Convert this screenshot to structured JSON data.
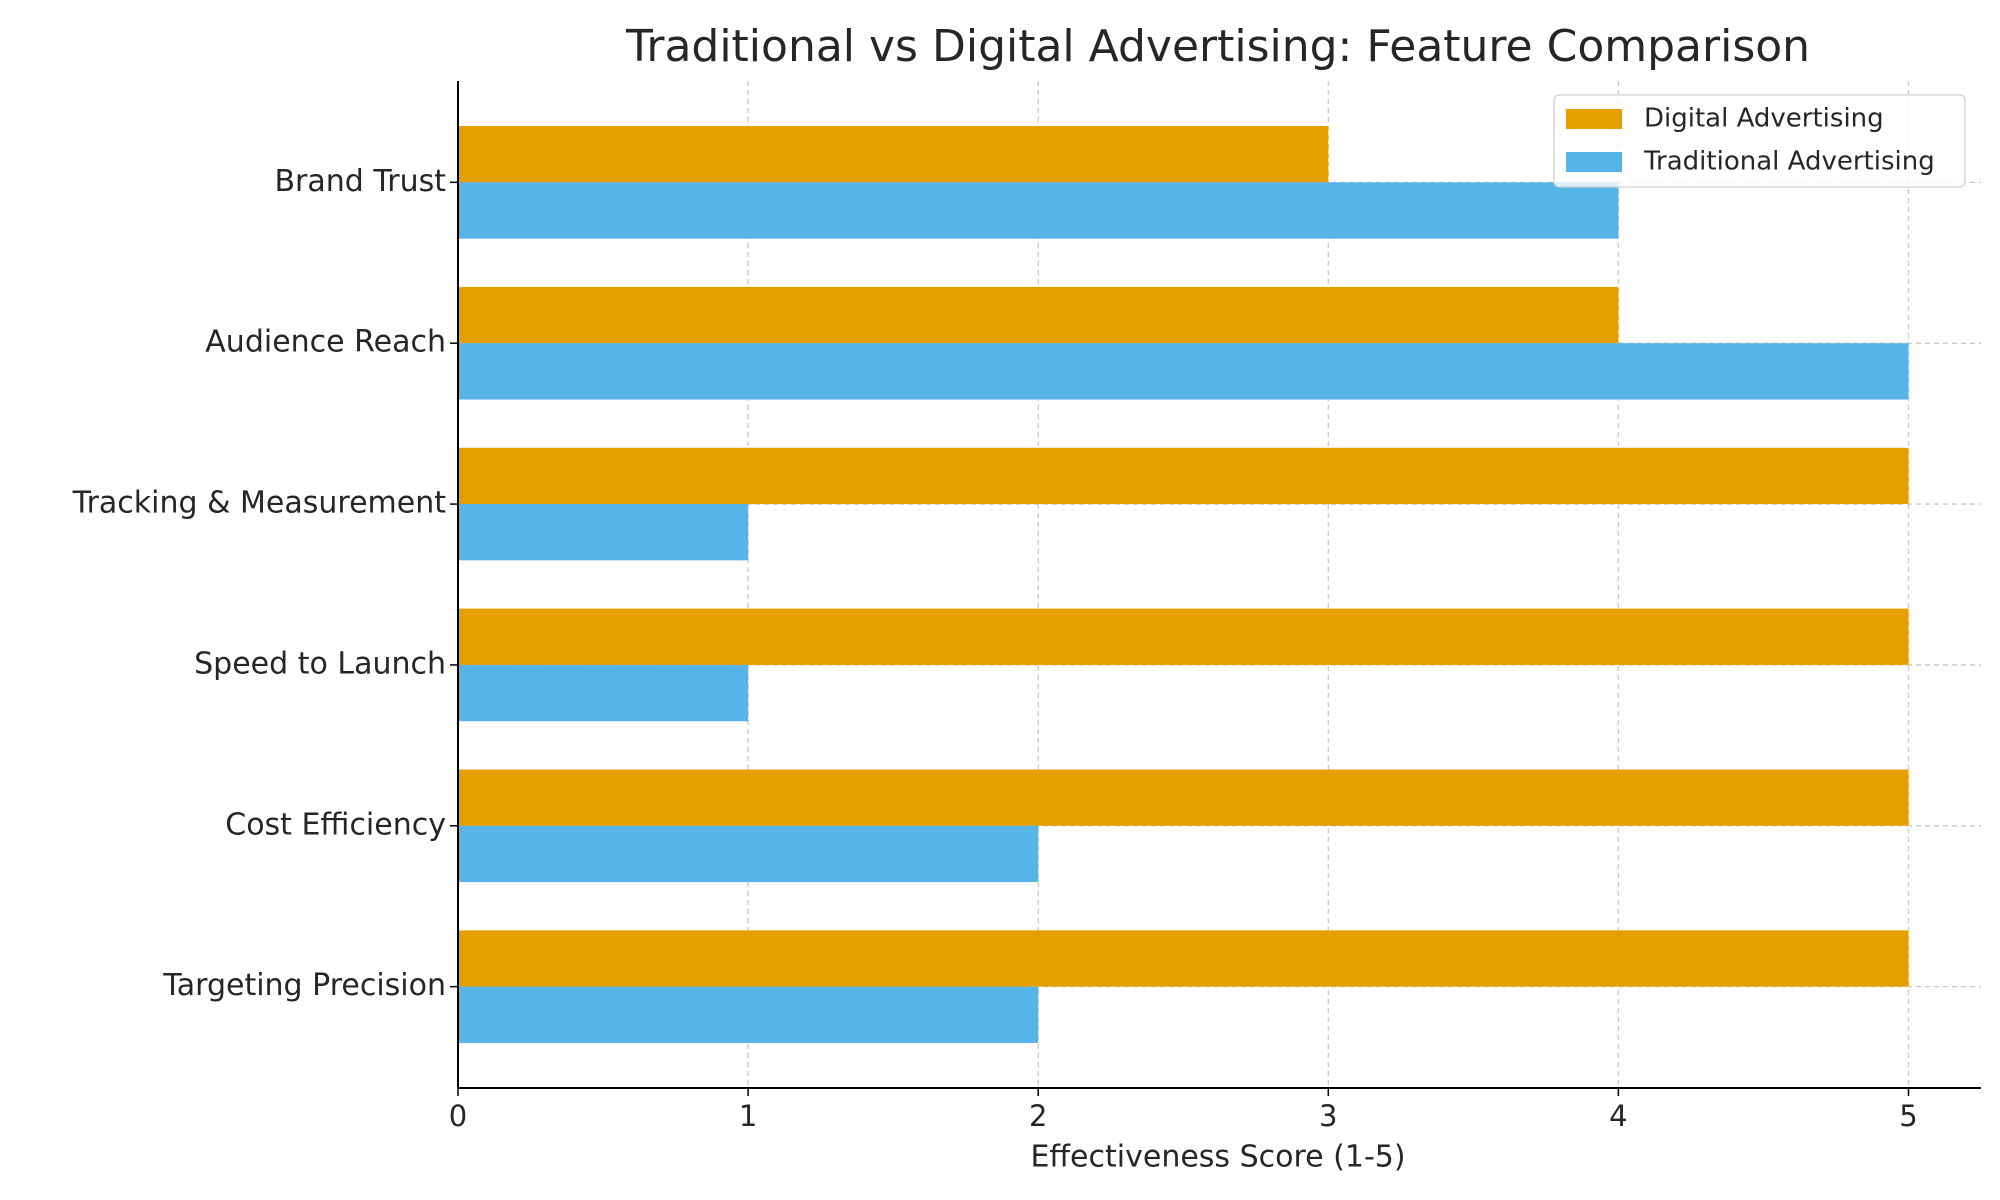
{
  "chart_data": {
    "type": "barh",
    "title": "Traditional vs Digital Advertising: Feature Comparison",
    "x_label": "Effectiveness Score (1-5)",
    "categories": [
      "Targeting Precision",
      "Cost Efficiency",
      "Speed to Launch",
      "Tracking & Measurement",
      "Audience Reach",
      "Brand Trust"
    ],
    "series": [
      {
        "name": "Digital Advertising",
        "color": "#E69F00",
        "values": [
          5,
          5,
          5,
          5,
          4,
          3
        ]
      },
      {
        "name": "Traditional Advertising",
        "color": "#56B4E9",
        "values": [
          2,
          2,
          1,
          1,
          5,
          4
        ]
      }
    ],
    "xlim": [
      0,
      5.25
    ],
    "xticks": [
      0,
      1,
      2,
      3,
      4,
      5
    ],
    "grid": true,
    "legend": "upper-right"
  }
}
